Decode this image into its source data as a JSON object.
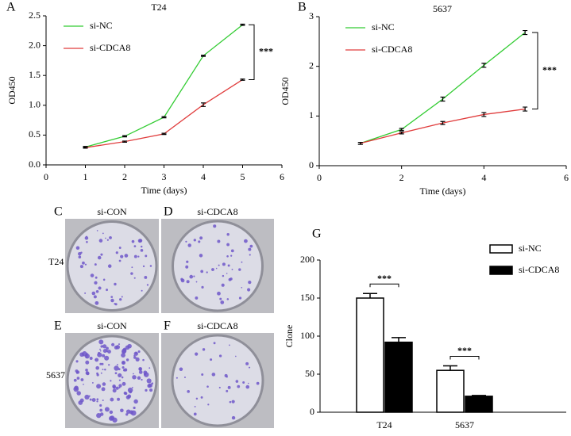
{
  "chart_data": [
    {
      "type": "line",
      "panel": "A",
      "title": "T24",
      "xlabel": "Time (days)",
      "ylabel": "OD450",
      "x": [
        1,
        2,
        3,
        4,
        5
      ],
      "series": [
        {
          "name": "si-NC",
          "color": "#33cc33",
          "values": [
            0.3,
            0.48,
            0.8,
            1.83,
            2.35
          ],
          "errors": [
            0.01,
            0.01,
            0.01,
            0.01,
            0.01
          ]
        },
        {
          "name": "si-CDCA8",
          "color": "#e03c3c",
          "values": [
            0.29,
            0.39,
            0.52,
            1.01,
            1.43
          ],
          "errors": [
            0.01,
            0.01,
            0.01,
            0.03,
            0.01
          ]
        }
      ],
      "xlim": [
        0,
        6
      ],
      "xticks": [
        0,
        1,
        2,
        3,
        4,
        5,
        6
      ],
      "ylim": [
        0,
        2.5
      ],
      "yticks": [
        {
          "value": 0,
          "label": "0.0"
        },
        0.5,
        {
          "value": 1,
          "label": "1.0"
        },
        1.5,
        {
          "value": 2,
          "label": "2.0"
        },
        2.5
      ],
      "annotations": [
        "***"
      ]
    },
    {
      "type": "line",
      "panel": "B",
      "title": "5637",
      "xlabel": "Time (days)",
      "ylabel": "OD450",
      "x": [
        1,
        2,
        3,
        4,
        5
      ],
      "series": [
        {
          "name": "si-NC",
          "color": "#33cc33",
          "values": [
            0.45,
            0.73,
            1.34,
            2.02,
            2.68
          ],
          "errors": [
            0.02,
            0.02,
            0.04,
            0.04,
            0.04
          ]
        },
        {
          "name": "si-CDCA8",
          "color": "#e03c3c",
          "values": [
            0.45,
            0.66,
            0.86,
            1.03,
            1.14
          ],
          "errors": [
            0.02,
            0.02,
            0.03,
            0.04,
            0.04
          ]
        }
      ],
      "xlim": [
        0,
        6
      ],
      "xticks": [
        0,
        2,
        4,
        6
      ],
      "ylim": [
        0,
        3
      ],
      "yticks": [
        0,
        1,
        2,
        3
      ],
      "annotations": [
        "***"
      ]
    },
    {
      "type": "bar",
      "panel": "G",
      "ylabel": "Clone",
      "categories": [
        "T24",
        "5637"
      ],
      "series": [
        {
          "name": "si-NC",
          "color": "#ffffff",
          "values": [
            150,
            55
          ],
          "errors": [
            6,
            6
          ]
        },
        {
          "name": "si-CDCA8",
          "color": "#000000",
          "values": [
            92,
            21
          ],
          "errors": [
            6,
            1
          ]
        }
      ],
      "ylim": [
        0,
        200
      ],
      "yticks": [
        0,
        50,
        100,
        150,
        200
      ],
      "annotations": [
        "***",
        "***"
      ]
    }
  ],
  "photo_rows": [
    "T24",
    "5637"
  ],
  "photo_panels": [
    {
      "label": "C",
      "title": "si-CON"
    },
    {
      "label": "D",
      "title": "si-CDCA8"
    },
    {
      "label": "E",
      "title": "si-CON"
    },
    {
      "label": "F",
      "title": "si-CDCA8"
    }
  ]
}
